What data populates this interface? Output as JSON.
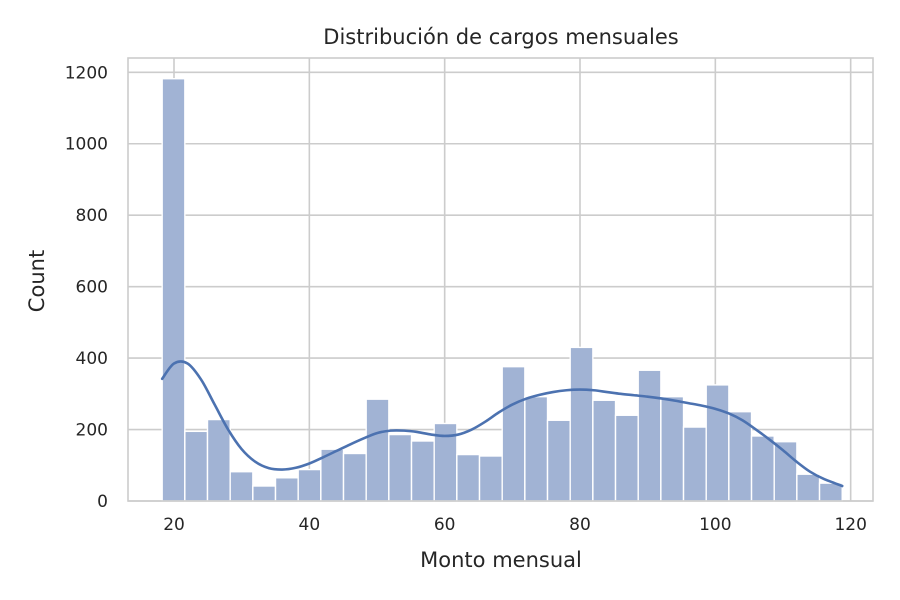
{
  "chart_data": {
    "type": "bar",
    "title": "Distribución de cargos mensuales",
    "xlabel": "Monto mensual",
    "ylabel": "Count",
    "xlim": [
      13.2,
      123.3
    ],
    "ylim": [
      0,
      1240
    ],
    "xticks": [
      20,
      40,
      60,
      80,
      100,
      120
    ],
    "yticks": [
      0,
      200,
      400,
      600,
      800,
      1000,
      1200
    ],
    "grid": true,
    "bins": [
      {
        "x0": 18.25,
        "x1": 21.6,
        "count": 1182
      },
      {
        "x0": 21.6,
        "x1": 24.95,
        "count": 195
      },
      {
        "x0": 24.95,
        "x1": 28.3,
        "count": 228
      },
      {
        "x0": 28.3,
        "x1": 31.65,
        "count": 82
      },
      {
        "x0": 31.65,
        "x1": 35.0,
        "count": 42
      },
      {
        "x0": 35.0,
        "x1": 38.35,
        "count": 65
      },
      {
        "x0": 38.35,
        "x1": 41.7,
        "count": 88
      },
      {
        "x0": 41.7,
        "x1": 45.05,
        "count": 145
      },
      {
        "x0": 45.05,
        "x1": 48.4,
        "count": 133
      },
      {
        "x0": 48.4,
        "x1": 51.75,
        "count": 285
      },
      {
        "x0": 51.75,
        "x1": 55.1,
        "count": 186
      },
      {
        "x0": 55.1,
        "x1": 58.45,
        "count": 168
      },
      {
        "x0": 58.45,
        "x1": 61.8,
        "count": 217
      },
      {
        "x0": 61.8,
        "x1": 65.15,
        "count": 130
      },
      {
        "x0": 65.15,
        "x1": 68.5,
        "count": 126
      },
      {
        "x0": 68.5,
        "x1": 71.85,
        "count": 376
      },
      {
        "x0": 71.85,
        "x1": 75.2,
        "count": 292
      },
      {
        "x0": 75.2,
        "x1": 78.55,
        "count": 226
      },
      {
        "x0": 78.55,
        "x1": 81.9,
        "count": 430
      },
      {
        "x0": 81.9,
        "x1": 85.25,
        "count": 282
      },
      {
        "x0": 85.25,
        "x1": 88.6,
        "count": 240
      },
      {
        "x0": 88.6,
        "x1": 91.95,
        "count": 366
      },
      {
        "x0": 91.95,
        "x1": 95.3,
        "count": 292
      },
      {
        "x0": 95.3,
        "x1": 98.65,
        "count": 207
      },
      {
        "x0": 98.65,
        "x1": 102.0,
        "count": 325
      },
      {
        "x0": 102.0,
        "x1": 105.35,
        "count": 250
      },
      {
        "x0": 105.35,
        "x1": 108.7,
        "count": 182
      },
      {
        "x0": 108.7,
        "x1": 112.05,
        "count": 166
      },
      {
        "x0": 112.05,
        "x1": 115.4,
        "count": 75
      },
      {
        "x0": 115.4,
        "x1": 118.75,
        "count": 50
      }
    ],
    "kde": {
      "x": [
        18.25,
        20.0,
        22.0,
        24.0,
        26.0,
        28.0,
        30.0,
        32.0,
        34.0,
        36.0,
        38.0,
        40.0,
        42.0,
        44.0,
        46.0,
        48.0,
        50.0,
        52.0,
        54.0,
        56.0,
        58.0,
        60.0,
        62.0,
        64.0,
        66.0,
        68.0,
        70.0,
        72.0,
        74.0,
        76.0,
        78.0,
        80.0,
        82.0,
        84.0,
        86.0,
        88.0,
        90.0,
        92.0,
        94.0,
        96.0,
        98.0,
        100.0,
        102.0,
        104.0,
        106.0,
        108.0,
        110.0,
        112.0,
        114.0,
        116.0,
        118.75
      ],
      "y": [
        342,
        385,
        385,
        340,
        270,
        200,
        145,
        110,
        92,
        88,
        93,
        105,
        122,
        140,
        158,
        175,
        190,
        197,
        197,
        193,
        186,
        182,
        186,
        200,
        222,
        248,
        270,
        286,
        297,
        305,
        310,
        312,
        310,
        305,
        300,
        296,
        292,
        287,
        281,
        274,
        267,
        258,
        245,
        226,
        200,
        172,
        142,
        110,
        82,
        62,
        42
      ]
    }
  },
  "colors": {
    "bar_fill": "#a1b3d4",
    "bar_edge": "#ffffff",
    "kde_line": "#4c72b0",
    "grid": "#cccccc",
    "text": "#262626"
  }
}
